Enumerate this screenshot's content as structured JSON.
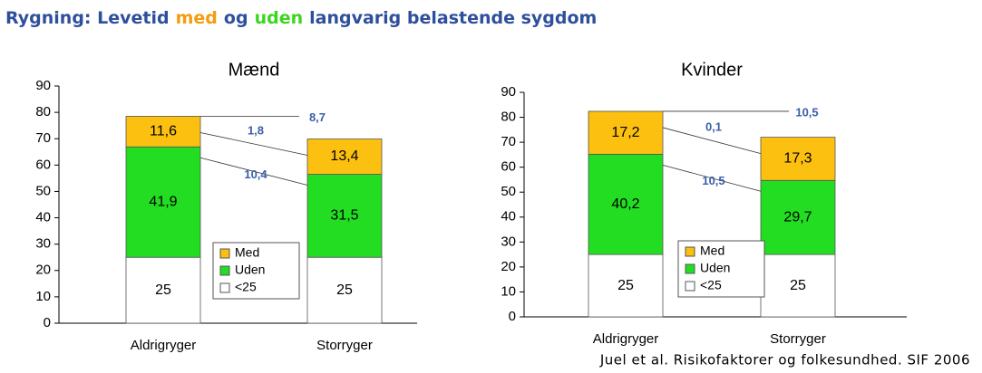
{
  "page_title": [
    {
      "text": "Rygning: Levetid",
      "color": "#2e4f9c"
    },
    {
      "text": "med",
      "color": "#f39c12"
    },
    {
      "text": "og",
      "color": "#2e4f9c"
    },
    {
      "text": "uden",
      "color": "#3cd61e"
    },
    {
      "text": "langvarig belastende sygdom",
      "color": "#2e4f9c"
    }
  ],
  "source": "Juel et al. Risikofaktorer og folkesundhed. SIF 2006",
  "chart_data": [
    {
      "type": "bar",
      "stacked": true,
      "title": "Mænd",
      "categories": [
        "Aldrigryger",
        "Storryger"
      ],
      "series": [
        {
          "name": "<25",
          "color": "#ffffff",
          "values": [
            25,
            25
          ]
        },
        {
          "name": "Uden",
          "color": "#22dd22",
          "values": [
            41.9,
            31.5
          ],
          "value_labels": [
            "41,9",
            "31,5"
          ]
        },
        {
          "name": "Med",
          "color": "#fcc010",
          "values": [
            11.6,
            13.4
          ],
          "value_labels": [
            "11,6",
            "13,4"
          ]
        }
      ],
      "ylim": [
        0,
        90
      ],
      "yticks": [
        0,
        10,
        20,
        30,
        40,
        50,
        60,
        70,
        80,
        90
      ],
      "legend": "center",
      "annotations": [
        "8,7",
        "1,8",
        "10,4"
      ]
    },
    {
      "type": "bar",
      "stacked": true,
      "title": "Kvinder",
      "categories": [
        "Aldrigryger",
        "Storryger"
      ],
      "series": [
        {
          "name": "<25",
          "color": "#ffffff",
          "values": [
            25,
            25
          ]
        },
        {
          "name": "Uden",
          "color": "#22dd22",
          "values": [
            40.2,
            29.7
          ],
          "value_labels": [
            "40,2",
            "29,7"
          ]
        },
        {
          "name": "Med",
          "color": "#fcc010",
          "values": [
            17.2,
            17.3
          ],
          "value_labels": [
            "17,2",
            "17,3"
          ]
        }
      ],
      "ylim": [
        0,
        90
      ],
      "yticks": [
        0,
        10,
        20,
        30,
        40,
        50,
        60,
        70,
        80,
        90
      ],
      "legend": "center",
      "annotations": [
        "10,5",
        "0,1",
        "10,5"
      ]
    }
  ]
}
